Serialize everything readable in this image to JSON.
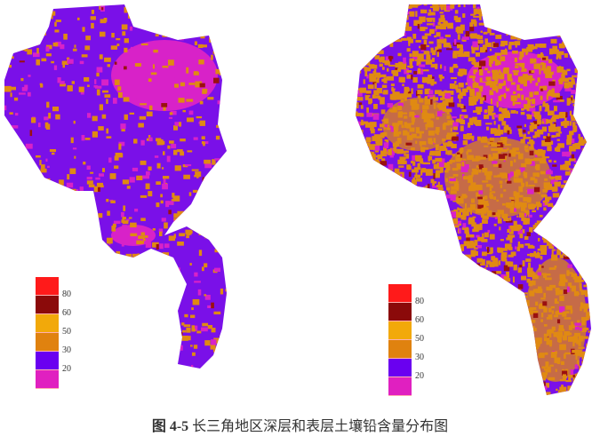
{
  "caption": {
    "figure_number": "图 4-5",
    "title": "长三角地区深层和表层土壤铅含量分布图"
  },
  "maps": [
    {
      "name": "deep-soil-lead-map",
      "dominant_class": "purple"
    },
    {
      "name": "surface-soil-lead-map",
      "dominant_class": "orange"
    }
  ],
  "legend": {
    "colors": [
      "#ff1a1a",
      "#8b0a0a",
      "#f2a90a",
      "#e0820f",
      "#6a00f0",
      "#e020c0"
    ],
    "labels": [
      "80",
      "60",
      "50",
      "30",
      "20"
    ]
  },
  "palette": {
    "purple": "#7a10e8",
    "magenta": "#d822c8",
    "orange": "#e08a12",
    "dark_red": "#9a1010"
  }
}
